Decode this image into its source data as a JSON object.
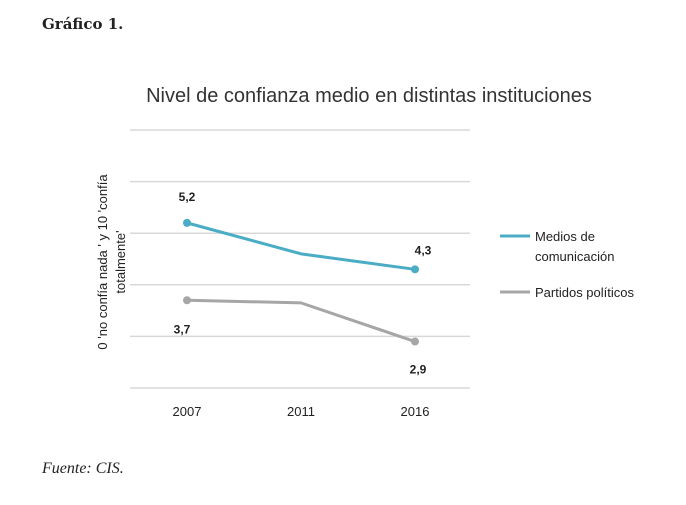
{
  "heading": "Gráfico 1.",
  "source": "Fuente: CIS.",
  "chart_data": {
    "type": "line",
    "title": "Nivel de confianza medio  en distintas instituciones",
    "ylabel_lines": [
      "0 'no confía nada ' y 10 'confía",
      "totalmente'"
    ],
    "xlabel": "",
    "categories": [
      "2007",
      "2011",
      "2016"
    ],
    "ylim": [
      2,
      7
    ],
    "grid": true,
    "legend_position": "right",
    "series": [
      {
        "name_lines": [
          "Medios de",
          "comunicación"
        ],
        "color": "#4bacc6",
        "values": [
          5.2,
          4.6,
          4.3
        ],
        "labels": [
          "5,2",
          "",
          "4,3"
        ]
      },
      {
        "name_lines": [
          "Partidos políticos"
        ],
        "color": "#a6a6a6",
        "values": [
          3.7,
          3.65,
          2.9
        ],
        "labels": [
          "3,7",
          "",
          "2,9"
        ]
      }
    ]
  }
}
